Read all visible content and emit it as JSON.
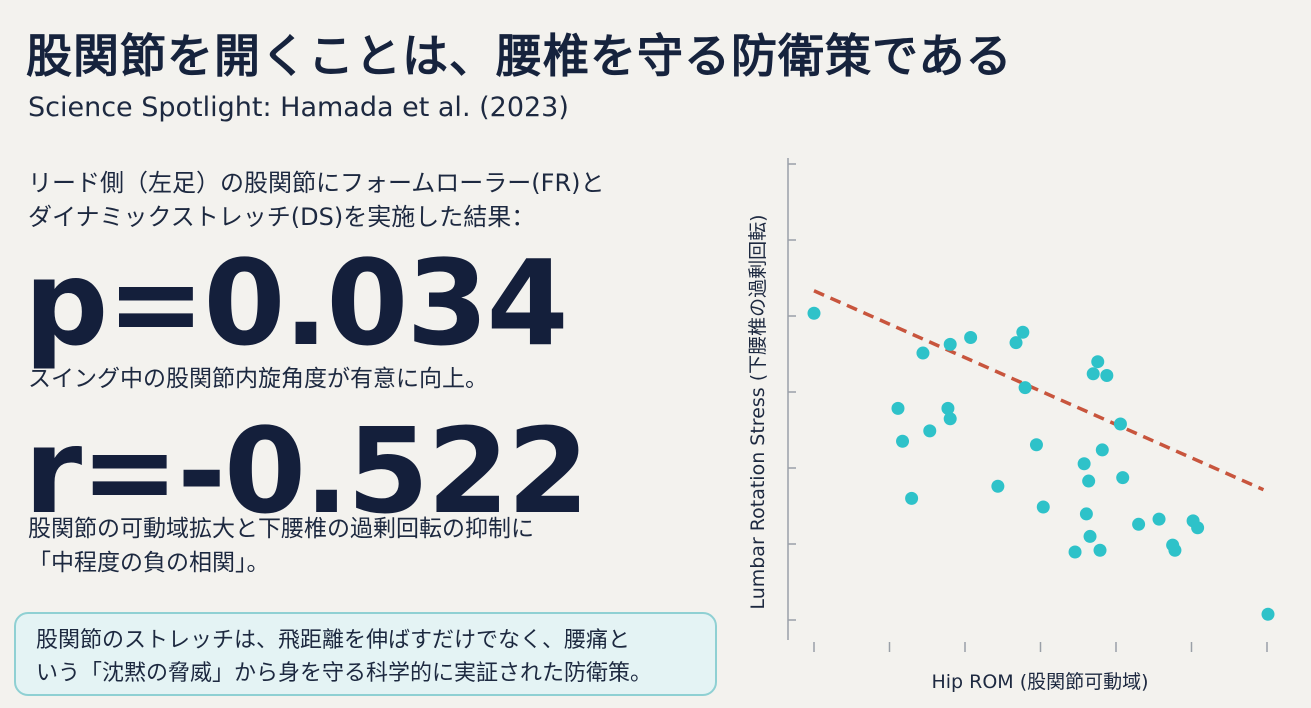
{
  "title": "股関節を開くことは、腰椎を守る防衛策である",
  "subtitle": "Science Spotlight: Hamada et al. (2023)",
  "intro": {
    "line1": "リード側（左足）の股関節にフォームローラー(FR)と",
    "line2": "ダイナミックストレッチ(DS)を実施した結果："
  },
  "stat_p": {
    "value": "p=0.034",
    "desc": "スイング中の股関節内旋角度が有意に向上。"
  },
  "stat_r": {
    "value": "r=-0.522",
    "desc_line1": "股関節の可動域拡大と下腰椎の過剰回転の抑制に",
    "desc_line2": "「中程度の負の相関」。"
  },
  "callout": {
    "line1": "股関節のストレッチは、飛距離を伸ばすだけでなく、腰痛と",
    "line2": "いう「沈黙の脅威」から身を守る科学的に実証された防衛策。"
  },
  "colors": {
    "point": "#2ec2c9",
    "trend": "#c8553d",
    "axis": "#9aa0a8",
    "callout_border": "#8fd0d3",
    "callout_bg": "#e4f3f4"
  },
  "chart_data": {
    "type": "scatter",
    "title": "",
    "xlabel": "Hip ROM (股関節可動域)",
    "ylabel": "Lumbar Rotation Stress (下腰椎の過剰回転)",
    "xlim": [
      0,
      10
    ],
    "ylim": [
      0,
      10
    ],
    "tick_labels": "none",
    "grid": false,
    "x": [
      0.0,
      1.85,
      2.15,
      2.55,
      2.95,
      3.0,
      3.45,
      4.05,
      4.6,
      4.9,
      5.05,
      5.95,
      6.0,
      6.05,
      6.08,
      6.15,
      6.35,
      6.25,
      6.75,
      6.45,
      6.3,
      7.6,
      6.8,
      7.9,
      7.15,
      7.95,
      8.45,
      8.35,
      3.0,
      4.45,
      2.4,
      4.65,
      5.75,
      1.95,
      10.0
    ],
    "y": [
      8.75,
      6.0,
      3.4,
      5.35,
      6.0,
      7.85,
      8.05,
      3.75,
      8.2,
      4.95,
      3.15,
      4.4,
      2.95,
      3.9,
      2.3,
      7.0,
      4.8,
      7.35,
      5.55,
      6.95,
      1.9,
      2.8,
      4.0,
      2.05,
      2.65,
      1.9,
      2.55,
      2.75,
      5.7,
      7.9,
      7.6,
      6.6,
      1.85,
      5.05,
      0.05
    ],
    "trend_line": {
      "x": [
        0.0,
        9.9
      ],
      "y": [
        9.4,
        3.65
      ]
    }
  }
}
